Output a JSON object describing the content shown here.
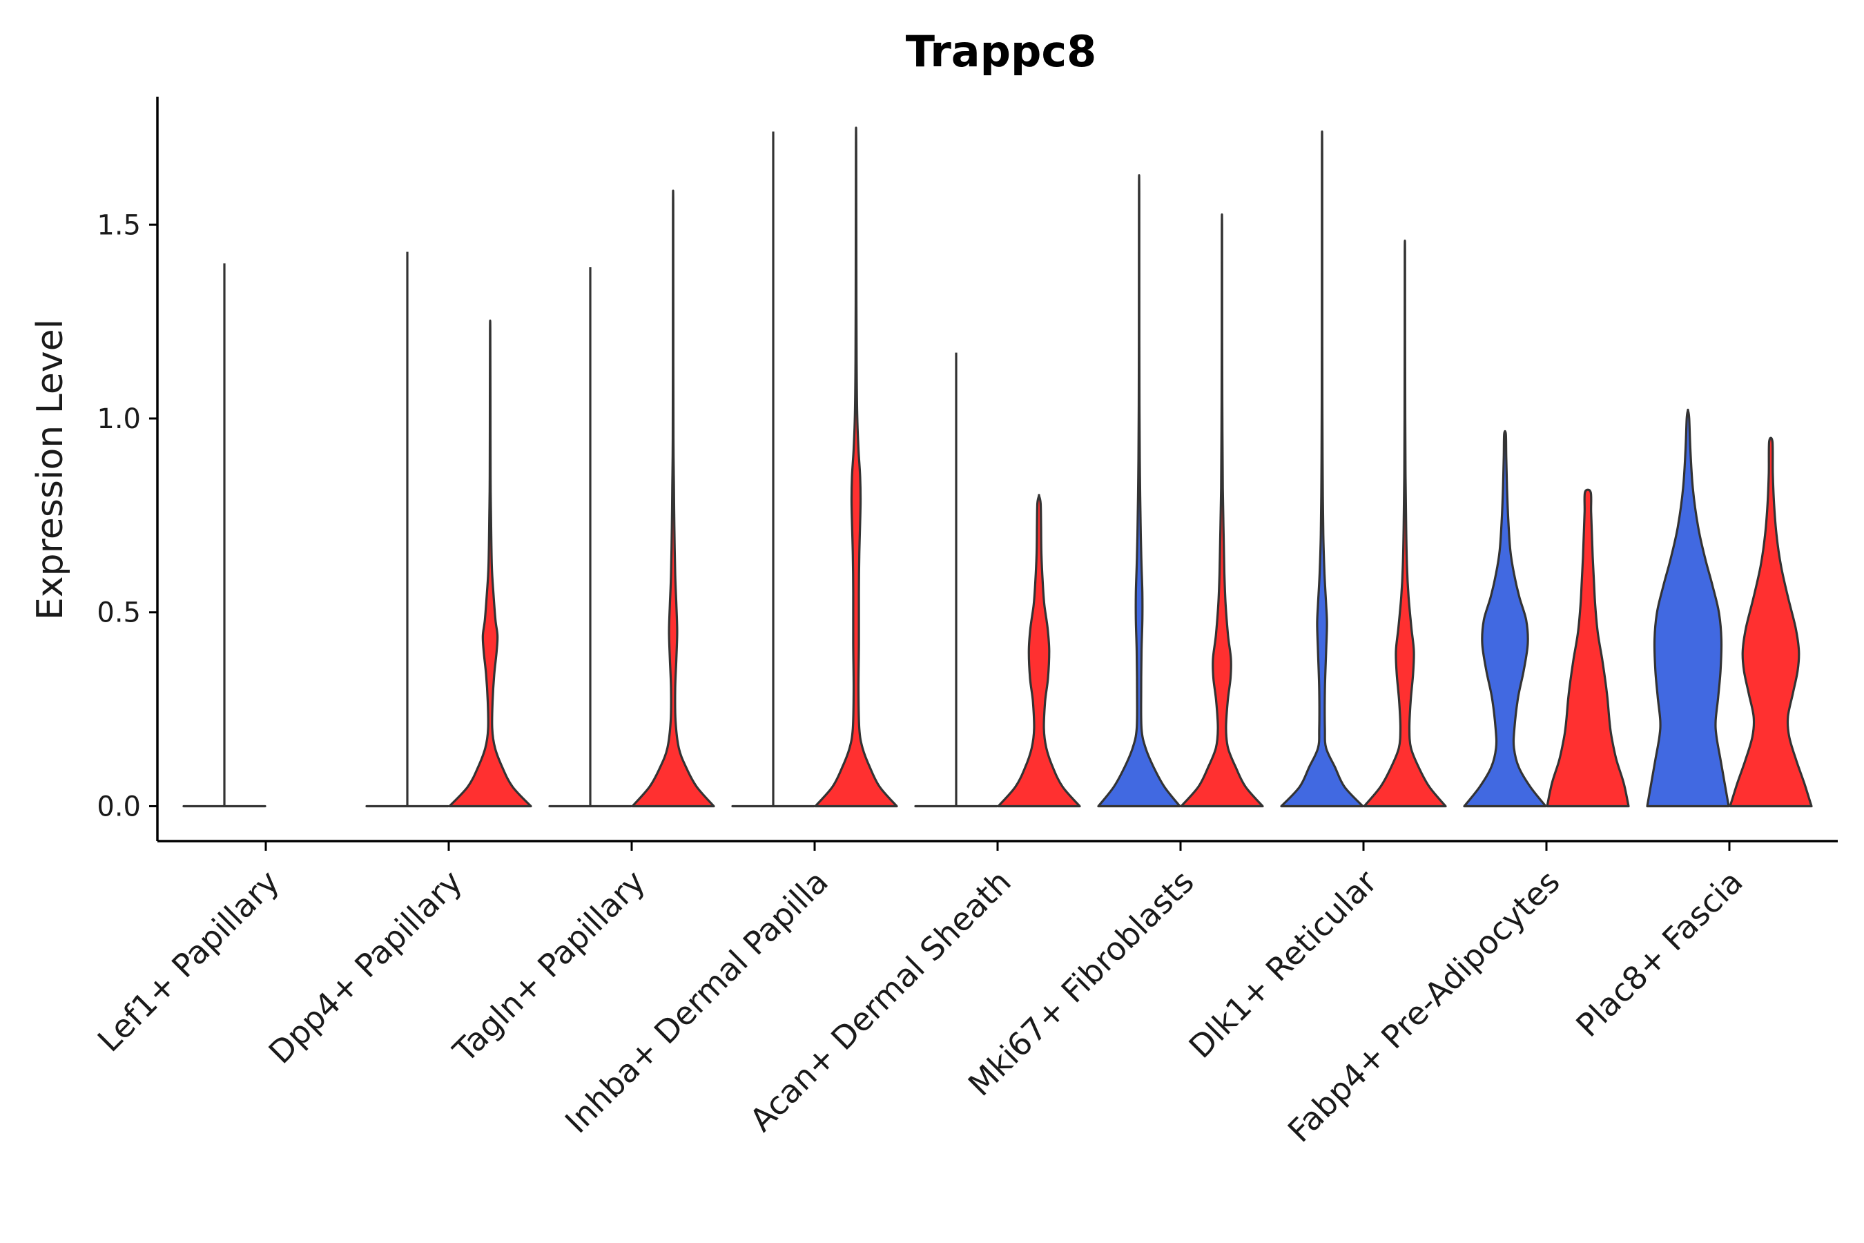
{
  "chart_data": {
    "type": "violin",
    "title": "Trappc8",
    "xlabel": "",
    "ylabel": "Expression Level",
    "ylim": [
      -0.09,
      1.83
    ],
    "yticks": [
      {
        "value": 0.0,
        "label": "0.0"
      },
      {
        "value": 0.5,
        "label": "0.5"
      },
      {
        "value": 1.0,
        "label": "1.0"
      },
      {
        "value": 1.5,
        "label": "1.5"
      }
    ],
    "grid": false,
    "legend": "none",
    "colors": {
      "group1": "#4169E1",
      "group2": "#FF3030",
      "outline": "#333333"
    },
    "categories": [
      "Lef1+ Papillary",
      "Dpp4+ Papillary",
      "Tagln+ Papillary",
      "Inhba+ Dermal Papilla",
      "Acan+ Dermal Sheath",
      "Mki67+ Fibroblasts",
      "Dlk1+ Reticular",
      "Fabp4+ Pre-Adipocytes",
      "Plac8+ Fascia"
    ],
    "violins": [
      {
        "category": "Lef1+ Papillary",
        "group": "group1",
        "max": 1.4,
        "shape": "flat"
      },
      {
        "category": "Dpp4+ Papillary",
        "group": "group1",
        "max": 1.43,
        "shape": "flat"
      },
      {
        "category": "Dpp4+ Papillary",
        "group": "group2",
        "max": 1.23,
        "shape": "A"
      },
      {
        "category": "Tagln+ Papillary",
        "group": "group1",
        "max": 1.39,
        "shape": "flat"
      },
      {
        "category": "Tagln+ Papillary",
        "group": "group2",
        "max": 1.55,
        "shape": "B"
      },
      {
        "category": "Inhba+ Dermal Papilla",
        "group": "group1",
        "max": 1.74,
        "shape": "flat"
      },
      {
        "category": "Inhba+ Dermal Papilla",
        "group": "group2",
        "max": 1.7,
        "shape": "C"
      },
      {
        "category": "Acan+ Dermal Sheath",
        "group": "group1",
        "max": 1.17,
        "shape": "flat"
      },
      {
        "category": "Acan+ Dermal Sheath",
        "group": "group2",
        "max": 0.8,
        "shape": "D"
      },
      {
        "category": "Mki67+ Fibroblasts",
        "group": "group1",
        "max": 1.58,
        "shape": "E"
      },
      {
        "category": "Mki67+ Fibroblasts",
        "group": "group2",
        "max": 1.49,
        "shape": "F"
      },
      {
        "category": "Dlk1+ Reticular",
        "group": "group1",
        "max": 1.68,
        "shape": "G"
      },
      {
        "category": "Dlk1+ Reticular",
        "group": "group2",
        "max": 1.43,
        "shape": "H"
      },
      {
        "category": "Fabp4+ Pre-Adipocytes",
        "group": "group1",
        "max": 0.96,
        "shape": "I"
      },
      {
        "category": "Fabp4+ Pre-Adipocytes",
        "group": "group2",
        "max": 0.81,
        "shape": "J"
      },
      {
        "category": "Plac8+ Fascia",
        "group": "group1",
        "max": 1.02,
        "shape": "K"
      },
      {
        "category": "Plac8+ Fascia",
        "group": "group2",
        "max": 0.94,
        "shape": "L"
      }
    ],
    "density_profiles": {
      "A": [
        [
          0,
          1.0
        ],
        [
          0.05,
          0.55
        ],
        [
          0.1,
          0.3
        ],
        [
          0.15,
          0.12
        ],
        [
          0.2,
          0.05
        ],
        [
          0.27,
          0.06
        ],
        [
          0.34,
          0.1
        ],
        [
          0.4,
          0.16
        ],
        [
          0.44,
          0.18
        ],
        [
          0.48,
          0.13
        ],
        [
          0.55,
          0.08
        ],
        [
          0.62,
          0.04
        ],
        [
          0.75,
          0.02
        ],
        [
          0.85,
          0.01
        ],
        [
          1.05,
          0.006
        ]
      ],
      "B": [
        [
          0,
          1.0
        ],
        [
          0.05,
          0.58
        ],
        [
          0.1,
          0.32
        ],
        [
          0.15,
          0.14
        ],
        [
          0.22,
          0.06
        ],
        [
          0.3,
          0.05
        ],
        [
          0.38,
          0.08
        ],
        [
          0.45,
          0.1
        ],
        [
          0.52,
          0.08
        ],
        [
          0.6,
          0.05
        ],
        [
          0.72,
          0.03
        ],
        [
          0.82,
          0.02
        ],
        [
          0.95,
          0.008
        ],
        [
          1.25,
          0.005
        ]
      ],
      "C": [
        [
          0,
          1.0
        ],
        [
          0.05,
          0.58
        ],
        [
          0.1,
          0.34
        ],
        [
          0.15,
          0.16
        ],
        [
          0.2,
          0.08
        ],
        [
          0.3,
          0.06
        ],
        [
          0.42,
          0.07
        ],
        [
          0.55,
          0.07
        ],
        [
          0.65,
          0.08
        ],
        [
          0.78,
          0.11
        ],
        [
          0.85,
          0.1
        ],
        [
          0.92,
          0.06
        ],
        [
          1.0,
          0.03
        ],
        [
          1.12,
          0.015
        ],
        [
          1.3,
          0.008
        ]
      ],
      "D": [
        [
          0,
          1.0
        ],
        [
          0.05,
          0.58
        ],
        [
          0.1,
          0.34
        ],
        [
          0.15,
          0.18
        ],
        [
          0.2,
          0.12
        ],
        [
          0.27,
          0.15
        ],
        [
          0.33,
          0.22
        ],
        [
          0.4,
          0.25
        ],
        [
          0.46,
          0.21
        ],
        [
          0.52,
          0.13
        ],
        [
          0.58,
          0.09
        ],
        [
          0.65,
          0.06
        ],
        [
          0.72,
          0.05
        ],
        [
          0.78,
          0.04
        ]
      ],
      "E": [
        [
          0,
          1.0
        ],
        [
          0.05,
          0.62
        ],
        [
          0.1,
          0.36
        ],
        [
          0.15,
          0.16
        ],
        [
          0.2,
          0.06
        ],
        [
          0.3,
          0.05
        ],
        [
          0.4,
          0.06
        ],
        [
          0.48,
          0.08
        ],
        [
          0.55,
          0.08
        ],
        [
          0.62,
          0.06
        ],
        [
          0.7,
          0.04
        ],
        [
          0.85,
          0.02
        ],
        [
          1.0,
          0.01
        ],
        [
          1.2,
          0.005
        ]
      ],
      "F": [
        [
          0,
          1.0
        ],
        [
          0.05,
          0.58
        ],
        [
          0.1,
          0.34
        ],
        [
          0.15,
          0.15
        ],
        [
          0.2,
          0.1
        ],
        [
          0.27,
          0.14
        ],
        [
          0.33,
          0.21
        ],
        [
          0.38,
          0.22
        ],
        [
          0.44,
          0.15
        ],
        [
          0.52,
          0.09
        ],
        [
          0.6,
          0.06
        ],
        [
          0.7,
          0.04
        ],
        [
          0.82,
          0.02
        ],
        [
          1.0,
          0.01
        ],
        [
          1.2,
          0.005
        ]
      ],
      "G": [
        [
          0,
          1.0
        ],
        [
          0.05,
          0.55
        ],
        [
          0.1,
          0.32
        ],
        [
          0.15,
          0.1
        ],
        [
          0.2,
          0.07
        ],
        [
          0.3,
          0.07
        ],
        [
          0.4,
          0.1
        ],
        [
          0.47,
          0.12
        ],
        [
          0.52,
          0.1
        ],
        [
          0.6,
          0.06
        ],
        [
          0.7,
          0.03
        ],
        [
          0.85,
          0.015
        ],
        [
          1.0,
          0.008
        ],
        [
          1.2,
          0.005
        ]
      ],
      "H": [
        [
          0,
          1.0
        ],
        [
          0.05,
          0.6
        ],
        [
          0.1,
          0.34
        ],
        [
          0.15,
          0.15
        ],
        [
          0.2,
          0.11
        ],
        [
          0.27,
          0.14
        ],
        [
          0.34,
          0.2
        ],
        [
          0.4,
          0.22
        ],
        [
          0.46,
          0.16
        ],
        [
          0.54,
          0.09
        ],
        [
          0.62,
          0.05
        ],
        [
          0.72,
          0.03
        ],
        [
          0.85,
          0.015
        ],
        [
          1.0,
          0.008
        ],
        [
          1.2,
          0.005
        ]
      ],
      "I": [
        [
          0,
          1.0
        ],
        [
          0.05,
          0.62
        ],
        [
          0.1,
          0.34
        ],
        [
          0.15,
          0.22
        ],
        [
          0.2,
          0.23
        ],
        [
          0.28,
          0.32
        ],
        [
          0.35,
          0.46
        ],
        [
          0.42,
          0.56
        ],
        [
          0.48,
          0.52
        ],
        [
          0.54,
          0.35
        ],
        [
          0.6,
          0.22
        ],
        [
          0.66,
          0.13
        ],
        [
          0.74,
          0.08
        ],
        [
          0.82,
          0.05
        ],
        [
          0.9,
          0.03
        ],
        [
          0.96,
          0.02
        ]
      ],
      "J": [
        [
          0,
          1.0
        ],
        [
          0.06,
          0.88
        ],
        [
          0.12,
          0.7
        ],
        [
          0.18,
          0.58
        ],
        [
          0.22,
          0.53
        ],
        [
          0.28,
          0.48
        ],
        [
          0.33,
          0.42
        ],
        [
          0.38,
          0.35
        ],
        [
          0.45,
          0.24
        ],
        [
          0.52,
          0.18
        ],
        [
          0.58,
          0.15
        ],
        [
          0.64,
          0.12
        ],
        [
          0.7,
          0.1
        ],
        [
          0.76,
          0.08
        ],
        [
          0.81,
          0.07
        ]
      ],
      "K": [
        [
          0,
          1.0
        ],
        [
          0.06,
          0.9
        ],
        [
          0.12,
          0.8
        ],
        [
          0.18,
          0.7
        ],
        [
          0.22,
          0.68
        ],
        [
          0.28,
          0.74
        ],
        [
          0.35,
          0.8
        ],
        [
          0.43,
          0.82
        ],
        [
          0.5,
          0.76
        ],
        [
          0.57,
          0.6
        ],
        [
          0.64,
          0.42
        ],
        [
          0.72,
          0.25
        ],
        [
          0.82,
          0.12
        ],
        [
          0.92,
          0.06
        ],
        [
          1.0,
          0.03
        ]
      ],
      "L": [
        [
          0,
          1.0
        ],
        [
          0.06,
          0.82
        ],
        [
          0.12,
          0.62
        ],
        [
          0.18,
          0.45
        ],
        [
          0.23,
          0.42
        ],
        [
          0.29,
          0.54
        ],
        [
          0.35,
          0.66
        ],
        [
          0.4,
          0.69
        ],
        [
          0.46,
          0.61
        ],
        [
          0.54,
          0.42
        ],
        [
          0.62,
          0.25
        ],
        [
          0.7,
          0.14
        ],
        [
          0.78,
          0.08
        ],
        [
          0.86,
          0.05
        ],
        [
          0.94,
          0.04
        ]
      ],
      "flat": [
        [
          0,
          1.0
        ],
        [
          0.02,
          0.0
        ]
      ]
    }
  }
}
